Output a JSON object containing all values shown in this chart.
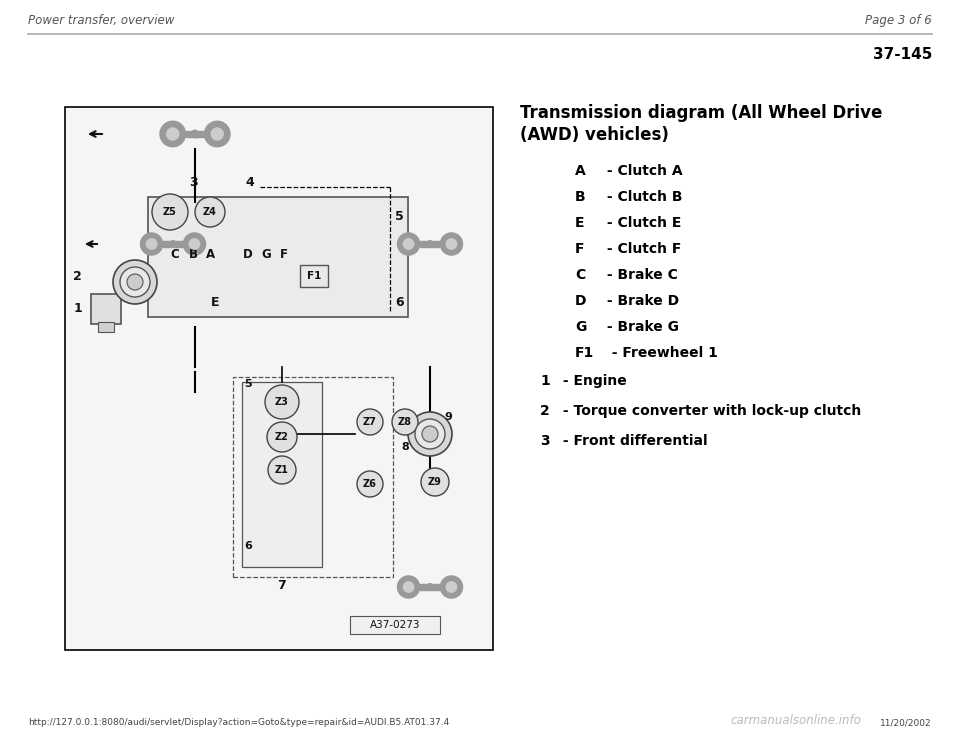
{
  "page_title_left": "Power transfer, overview",
  "page_title_right": "Page 3 of 6",
  "page_number": "37-145",
  "section_title_line1": "Transmission diagram (All Wheel Drive",
  "section_title_line2": "(AWD) vehicles)",
  "legend_items_indented": [
    {
      "key": "A",
      "desc": " - Clutch A"
    },
    {
      "key": "B",
      "desc": " - Clutch B"
    },
    {
      "key": "E",
      "desc": " - Clutch E"
    },
    {
      "key": "F",
      "desc": " - Clutch F"
    },
    {
      "key": "C",
      "desc": " - Brake C"
    },
    {
      "key": "D",
      "desc": " - Brake D"
    },
    {
      "key": "G",
      "desc": " - Brake G"
    },
    {
      "key": "F1",
      "desc": "  - Freewheel 1"
    }
  ],
  "legend_items_numbered": [
    {
      "key": "1",
      "desc": " - Engine"
    },
    {
      "key": "2",
      "desc": " - Torque converter with lock-up clutch"
    },
    {
      "key": "3",
      "desc": " - Front differential"
    }
  ],
  "footer_url": "http://127.0.0.1:8080/audi/servlet/Display?action=Goto&type=repair&id=AUDI.B5.AT01.37.4",
  "footer_date": "11/20/2002",
  "footer_watermark": "carmanualsonline.info",
  "bg_color": "#ffffff",
  "fig_label": "A37-0273"
}
